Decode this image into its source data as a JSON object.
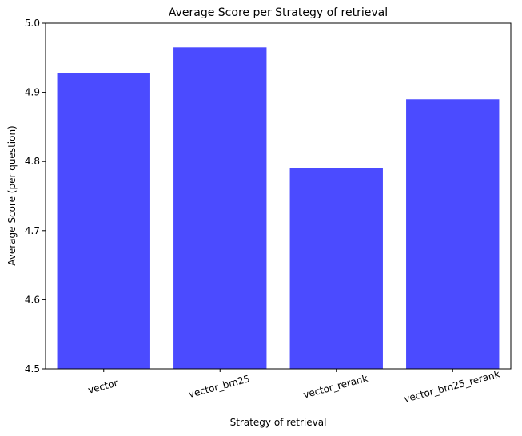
{
  "chart_data": {
    "type": "bar",
    "title": "Average Score per Strategy of retrieval",
    "xlabel": "Strategy of retrieval",
    "ylabel": "Average Score (per question)",
    "categories": [
      "vector",
      "vector_bm25",
      "vector_rerank",
      "vector_bm25_rerank"
    ],
    "values": [
      4.928,
      4.965,
      4.79,
      4.89
    ],
    "ylim": [
      4.5,
      5.0
    ],
    "yticks": [
      4.5,
      4.6,
      4.7,
      4.8,
      4.9,
      5.0
    ],
    "ytick_labels": [
      "4.5",
      "4.6",
      "4.7",
      "4.8",
      "4.9",
      "5.0"
    ],
    "bar_color": "#4b4bff",
    "grid": false,
    "xtick_rotation_deg": -15
  }
}
